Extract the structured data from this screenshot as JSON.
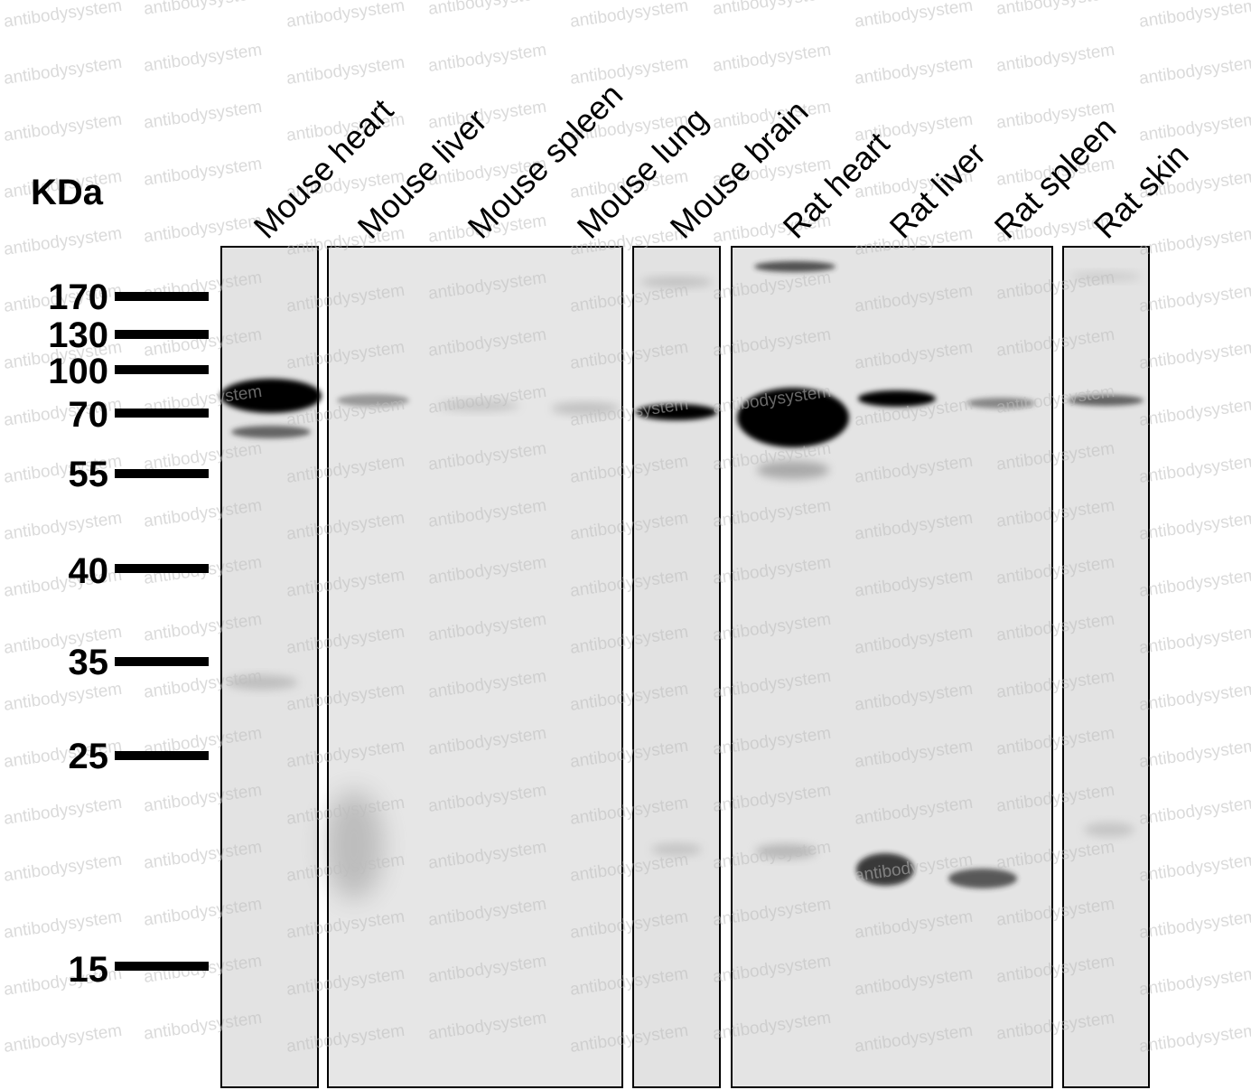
{
  "unit_label": "KDa",
  "watermark_text": "antibodysystem",
  "lane_labels": [
    "Mouse heart",
    "Mouse liver",
    "Mouse spleen",
    "Mouse lung",
    "Mouse brain",
    "Rat heart",
    "Rat liver",
    "Rat spleen",
    "Rat skin"
  ],
  "molecular_weight_markers": [
    "170",
    "130",
    "100",
    "70",
    "55",
    "40",
    "35",
    "25",
    "15"
  ],
  "colors": {
    "membrane_background": "#e2e2e2",
    "band": "#000000",
    "frame": "#000000",
    "watermark": "#bdbdbd"
  }
}
